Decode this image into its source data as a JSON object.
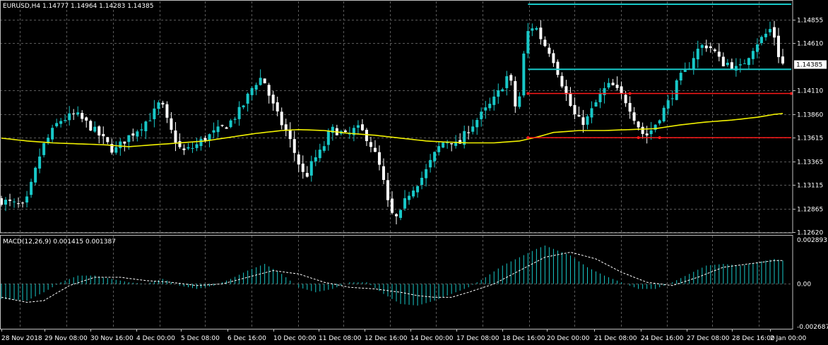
{
  "window": {
    "main_header": "EURUSD,H4  1.14777 1.14964 1.14283 1.14385",
    "macd_header": "MACD(12,26,9) 0.001415 0.001387"
  },
  "colors": {
    "background": "#000000",
    "grid": "#5a5a5a",
    "bull_candle": "#18c8c8",
    "bear_candle": "#ffffff",
    "moving_average": "#f0f000",
    "macd_histogram": "#18c8c8",
    "macd_signal": "#ffffff",
    "support_resistance_red": "#ff1a1a",
    "channel_cyan": "#18c8c8",
    "price_label_bg": "#ffffff"
  },
  "chart_data": [
    {
      "type": "candlestick",
      "symbol": "EURUSD",
      "timeframe": "H4",
      "current_price": 1.14385,
      "ylim": [
        1.1262,
        1.1505
      ],
      "y_ticks": [
        1.14855,
        1.1461,
        1.1411,
        1.1386,
        1.13615,
        1.13365,
        1.13115,
        1.12865,
        1.1262
      ],
      "y_tick_labels": [
        "1.14855",
        "1.14610",
        "1.14110",
        "1.13860",
        "1.13615",
        "1.13365",
        "1.13115",
        "1.12865",
        "1.12620"
      ],
      "current_price_label": "1.14385",
      "x_labels": [
        "28 Nov 2018",
        "29 Nov 08:00",
        "30 Nov 16:00",
        "4 Dec 00:00",
        "5 Dec 08:00",
        "6 Dec 16:00",
        "10 Dec 00:00",
        "11 Dec 08:00",
        "12 Dec 16:00",
        "14 Dec 00:00",
        "17 Dec 08:00",
        "18 Dec 16:00",
        "20 Dec 00:00",
        "21 Dec 08:00",
        "24 Dec 16:00",
        "27 Dec 08:00",
        "28 Dec 16:00",
        "2 Jan 00:00"
      ],
      "price_path": [
        [
          0,
          1.1296
        ],
        [
          6,
          1.1288
        ],
        [
          10,
          1.135
        ],
        [
          14,
          1.1379
        ],
        [
          18,
          1.1386
        ],
        [
          21,
          1.1375
        ],
        [
          24,
          1.1362
        ],
        [
          27,
          1.1347
        ],
        [
          30,
          1.1361
        ],
        [
          33,
          1.1372
        ],
        [
          36,
          1.1385
        ],
        [
          38,
          1.14
        ],
        [
          40,
          1.1372
        ],
        [
          43,
          1.1346
        ],
        [
          46,
          1.1352
        ],
        [
          48,
          1.136
        ],
        [
          50,
          1.1365
        ],
        [
          54,
          1.1376
        ],
        [
          57,
          1.1392
        ],
        [
          60,
          1.1418
        ],
        [
          62,
          1.1426
        ],
        [
          64,
          1.14
        ],
        [
          66,
          1.138
        ],
        [
          68,
          1.1364
        ],
        [
          70,
          1.134
        ],
        [
          72,
          1.1318
        ],
        [
          74,
          1.1338
        ],
        [
          76,
          1.1348
        ],
        [
          78,
          1.137
        ],
        [
          80,
          1.1368
        ],
        [
          82,
          1.1362
        ],
        [
          84,
          1.1372
        ],
        [
          86,
          1.1366
        ],
        [
          88,
          1.135
        ],
        [
          90,
          1.1325
        ],
        [
          92,
          1.1282
        ],
        [
          94,
          1.1275
        ],
        [
          96,
          1.13
        ],
        [
          98,
          1.1312
        ],
        [
          100,
          1.1322
        ],
        [
          102,
          1.134
        ],
        [
          104,
          1.1355
        ],
        [
          106,
          1.136
        ],
        [
          108,
          1.1352
        ],
        [
          110,
          1.1368
        ],
        [
          112,
          1.1378
        ],
        [
          114,
          1.1388
        ],
        [
          116,
          1.1398
        ],
        [
          118,
          1.1412
        ],
        [
          120,
          1.143
        ],
        [
          122,
          1.1383
        ],
        [
          124,
          1.147
        ],
        [
          126,
          1.1481
        ],
        [
          128,
          1.1462
        ],
        [
          130,
          1.145
        ],
        [
          132,
          1.1425
        ],
        [
          134,
          1.14
        ],
        [
          136,
          1.138
        ],
        [
          138,
          1.1378
        ],
        [
          140,
          1.1394
        ],
        [
          142,
          1.141
        ],
        [
          144,
          1.1418
        ],
        [
          146,
          1.1408
        ],
        [
          148,
          1.1398
        ],
        [
          150,
          1.1378
        ],
        [
          152,
          1.1362
        ],
        [
          154,
          1.1372
        ],
        [
          156,
          1.1388
        ],
        [
          158,
          1.1402
        ],
        [
          160,
          1.1423
        ],
        [
          162,
          1.1433
        ],
        [
          164,
          1.1452
        ],
        [
          166,
          1.146
        ],
        [
          168,
          1.1455
        ],
        [
          170,
          1.144
        ],
        [
          172,
          1.144
        ],
        [
          174,
          1.1432
        ],
        [
          176,
          1.1445
        ],
        [
          178,
          1.146
        ],
        [
          180,
          1.1468
        ],
        [
          182,
          1.1478
        ],
        [
          184,
          1.1439
        ]
      ],
      "moving_average_path": [
        [
          0,
          1.1361
        ],
        [
          6,
          1.1358
        ],
        [
          12,
          1.1356
        ],
        [
          18,
          1.1355
        ],
        [
          24,
          1.1354
        ],
        [
          30,
          1.1352
        ],
        [
          36,
          1.1354
        ],
        [
          42,
          1.1356
        ],
        [
          48,
          1.1358
        ],
        [
          54,
          1.1362
        ],
        [
          60,
          1.1366
        ],
        [
          66,
          1.1369
        ],
        [
          70,
          1.137
        ],
        [
          76,
          1.1369
        ],
        [
          82,
          1.1366
        ],
        [
          88,
          1.1364
        ],
        [
          92,
          1.1362
        ],
        [
          96,
          1.136
        ],
        [
          100,
          1.1358
        ],
        [
          104,
          1.1357
        ],
        [
          110,
          1.1356
        ],
        [
          116,
          1.1356
        ],
        [
          122,
          1.1358
        ],
        [
          126,
          1.1362
        ],
        [
          130,
          1.1367
        ],
        [
          136,
          1.1369
        ],
        [
          142,
          1.1369
        ],
        [
          148,
          1.137
        ],
        [
          154,
          1.1371
        ],
        [
          160,
          1.1375
        ],
        [
          166,
          1.1378
        ],
        [
          172,
          1.138
        ],
        [
          178,
          1.1383
        ],
        [
          182,
          1.1386
        ],
        [
          184,
          1.1387
        ]
      ],
      "annotations": {
        "channel_top": 1.1502,
        "channel_bottom": 1.14335,
        "resistance_red": 1.1408,
        "support_red": 1.13615
      }
    },
    {
      "type": "macd",
      "params": "12,26,9",
      "macd": 0.001415,
      "signal": 0.001387,
      "ylim": [
        -0.002687,
        0.002893
      ],
      "y_tick_labels": [
        "0.002893",
        "0.00",
        "-0.002687"
      ],
      "histogram_path": [
        [
          0,
          -0.0009
        ],
        [
          6,
          -0.001
        ],
        [
          10,
          -0.0005
        ],
        [
          14,
          0.0001
        ],
        [
          18,
          0.0005
        ],
        [
          22,
          0.0005
        ],
        [
          26,
          0.0003
        ],
        [
          30,
          0.0001
        ],
        [
          34,
          0.0
        ],
        [
          38,
          0.0003
        ],
        [
          42,
          -0.0001
        ],
        [
          46,
          -0.0003
        ],
        [
          50,
          -0.0001
        ],
        [
          54,
          0.0003
        ],
        [
          58,
          0.0008
        ],
        [
          62,
          0.0012
        ],
        [
          66,
          0.0006
        ],
        [
          70,
          -0.0002
        ],
        [
          74,
          -0.0005
        ],
        [
          78,
          -0.0003
        ],
        [
          82,
          0.0001
        ],
        [
          86,
          0.0001
        ],
        [
          90,
          -0.0006
        ],
        [
          94,
          -0.0012
        ],
        [
          98,
          -0.0013
        ],
        [
          102,
          -0.001
        ],
        [
          106,
          -0.0006
        ],
        [
          110,
          -0.0002
        ],
        [
          114,
          0.0004
        ],
        [
          118,
          0.0011
        ],
        [
          122,
          0.0016
        ],
        [
          126,
          0.0021
        ],
        [
          128,
          0.0023
        ],
        [
          130,
          0.0021
        ],
        [
          134,
          0.0017
        ],
        [
          138,
          0.001
        ],
        [
          142,
          0.0005
        ],
        [
          146,
          0.0001
        ],
        [
          150,
          -0.0003
        ],
        [
          154,
          -0.0003
        ],
        [
          158,
          0.0001
        ],
        [
          162,
          0.0006
        ],
        [
          166,
          0.0011
        ],
        [
          170,
          0.0012
        ],
        [
          174,
          0.0011
        ],
        [
          178,
          0.0013
        ],
        [
          182,
          0.0015
        ],
        [
          184,
          0.0014
        ]
      ],
      "signal_path": [
        [
          0,
          -0.0008
        ],
        [
          6,
          -0.0011
        ],
        [
          10,
          -0.001
        ],
        [
          16,
          -0.0001
        ],
        [
          22,
          0.0004
        ],
        [
          28,
          0.0004
        ],
        [
          34,
          0.0002
        ],
        [
          40,
          0.0001
        ],
        [
          46,
          -0.0001
        ],
        [
          52,
          0.0
        ],
        [
          58,
          0.0004
        ],
        [
          64,
          0.0008
        ],
        [
          70,
          0.0006
        ],
        [
          76,
          0.0001
        ],
        [
          82,
          -0.0002
        ],
        [
          88,
          -0.0003
        ],
        [
          94,
          -0.0005
        ],
        [
          98,
          -0.0007
        ],
        [
          102,
          -0.0008
        ],
        [
          106,
          -0.0008
        ],
        [
          110,
          -0.0005
        ],
        [
          116,
          0.0
        ],
        [
          122,
          0.0008
        ],
        [
          128,
          0.0016
        ],
        [
          134,
          0.0019
        ],
        [
          140,
          0.0015
        ],
        [
          146,
          0.0007
        ],
        [
          152,
          0.0001
        ],
        [
          158,
          -0.0001
        ],
        [
          164,
          0.0004
        ],
        [
          170,
          0.001
        ],
        [
          176,
          0.0012
        ],
        [
          182,
          0.0014
        ],
        [
          184,
          0.0014
        ]
      ]
    }
  ]
}
